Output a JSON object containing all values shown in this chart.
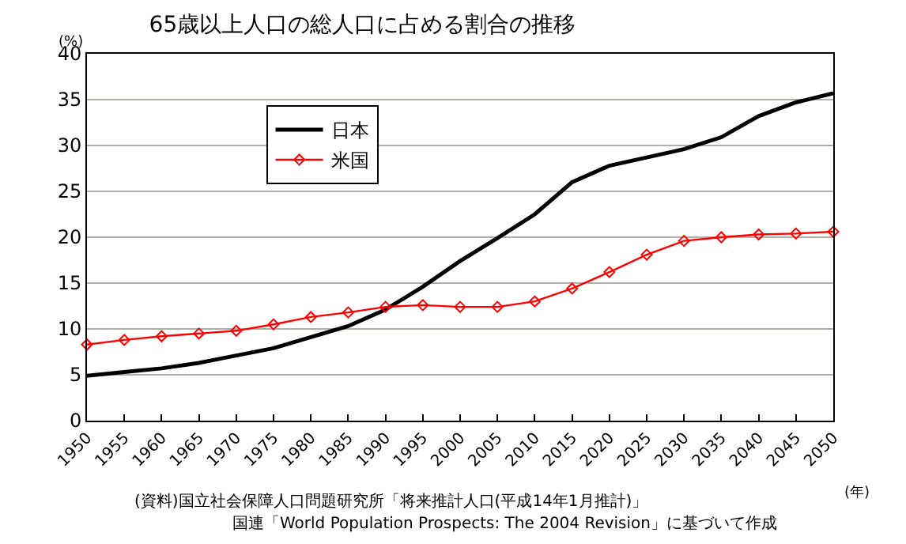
{
  "chart_data": {
    "type": "line",
    "title": "65歳以上人口の総人口に占める割合の推移",
    "ylabel": "(%)",
    "xlabel": "(年)",
    "x": [
      1950,
      1955,
      1960,
      1965,
      1970,
      1975,
      1980,
      1985,
      1990,
      1995,
      2000,
      2005,
      2010,
      2015,
      2020,
      2025,
      2030,
      2035,
      2040,
      2045,
      2050
    ],
    "xlim": [
      1950,
      2050
    ],
    "xticks": [
      1950,
      1955,
      1960,
      1965,
      1970,
      1975,
      1980,
      1985,
      1990,
      1995,
      2000,
      2005,
      2010,
      2015,
      2020,
      2025,
      2030,
      2035,
      2040,
      2045,
      2050
    ],
    "ylim": [
      0,
      40
    ],
    "yticks": [
      0,
      5,
      10,
      15,
      20,
      25,
      30,
      35,
      40
    ],
    "grid": "y",
    "legend": "top left",
    "series": [
      {
        "name": "日本",
        "color": "#000000",
        "marker": "none",
        "values": [
          4.9,
          5.3,
          5.7,
          6.3,
          7.1,
          7.9,
          9.1,
          10.3,
          12.1,
          14.6,
          17.4,
          19.9,
          22.5,
          26.0,
          27.8,
          28.7,
          29.6,
          30.9,
          33.2,
          34.7,
          35.7
        ]
      },
      {
        "name": "米国",
        "color": "#ff0000",
        "marker": "diamond",
        "values": [
          8.3,
          8.8,
          9.2,
          9.5,
          9.8,
          10.5,
          11.3,
          11.8,
          12.4,
          12.6,
          12.4,
          12.4,
          13.0,
          14.4,
          16.2,
          18.1,
          19.6,
          20.0,
          20.3,
          20.4,
          20.6
        ]
      }
    ],
    "annotations": [
      "(資料)国立社会保障人口問題研究所「将来推計人口(平成14年1月推計)」",
      "国連「World Population Prospects: The 2004 Revision」に基づいて作成"
    ]
  }
}
